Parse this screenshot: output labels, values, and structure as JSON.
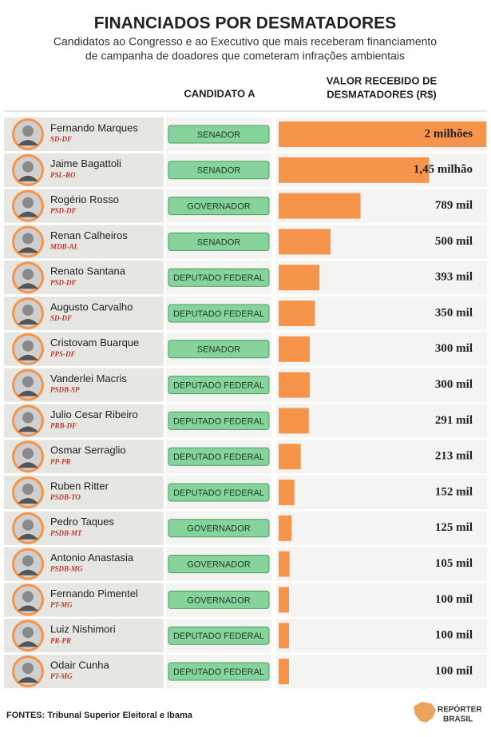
{
  "chart_data": {
    "type": "bar",
    "orientation": "horizontal",
    "title": "FINANCIADOS POR DESMATADORES",
    "subtitle": [
      "Candidatos ao Congresso e ao Executivo que mais receberam financiamento",
      "de campanha de doadores que cometeram infrações ambientais"
    ],
    "role_header": "CANDIDATO A",
    "value_header": [
      "VALOR RECEBIDO DE",
      "DESMATADORES (R$)"
    ],
    "categories": [
      "Fernando Marques",
      "Jaime Bagattoli",
      "Rogério Rosso",
      "Renan Calheiros",
      "Renato Santana",
      "Augusto Carvalho",
      "Cristovam Buarque",
      "Vanderlei Macris",
      "Julio Cesar Ribeiro",
      "Osmar Serraglio",
      "Ruben Ritter",
      "Pedro Taques",
      "Antonio Anastasia",
      "Fernando Pimentel",
      "Luiz Nishimori",
      "Odair Cunha"
    ],
    "parties": [
      "SD-DF",
      "PSL-RO",
      "PSD-DF",
      "MDB-AL",
      "PSD-DF",
      "SD-DF",
      "PPS-DF",
      "PSDB-SP",
      "PRB-DF",
      "PP-PR",
      "PSDB-TO",
      "PSDB-MT",
      "PSDB-MG",
      "PT-MG",
      "PR-PR",
      "PT-MG"
    ],
    "roles": [
      "SENADOR",
      "SENADOR",
      "GOVERNADOR",
      "SENADOR",
      "DEPUTADO FEDERAL",
      "DEPUTADO FEDERAL",
      "SENADOR",
      "DEPUTADO FEDERAL",
      "DEPUTADO FEDERAL",
      "DEPUTADO FEDERAL",
      "DEPUTADO FEDERAL",
      "GOVERNADOR",
      "GOVERNADOR",
      "GOVERNADOR",
      "DEPUTADO FEDERAL",
      "DEPUTADO FEDERAL"
    ],
    "values": [
      2000000,
      1450000,
      789000,
      500000,
      393000,
      350000,
      300000,
      300000,
      291000,
      213000,
      152000,
      125000,
      105000,
      100000,
      100000,
      100000
    ],
    "value_labels": [
      "2 milhões",
      "1,45 milhão",
      "789 mil",
      "500 mil",
      "393 mil",
      "350 mil",
      "300 mil",
      "300 mil",
      "291 mil",
      "213 mil",
      "152 mil",
      "125 mil",
      "105 mil",
      "100 mil",
      "100 mil",
      "100 mil"
    ],
    "xlim": [
      0,
      2000000
    ],
    "color": "#f5944a",
    "role_color": "#86d39c",
    "source": "FONTES: Tribunal Superior Eleitoral e Ibama",
    "logo": [
      "REPÓRTER",
      "BRASIL"
    ]
  }
}
